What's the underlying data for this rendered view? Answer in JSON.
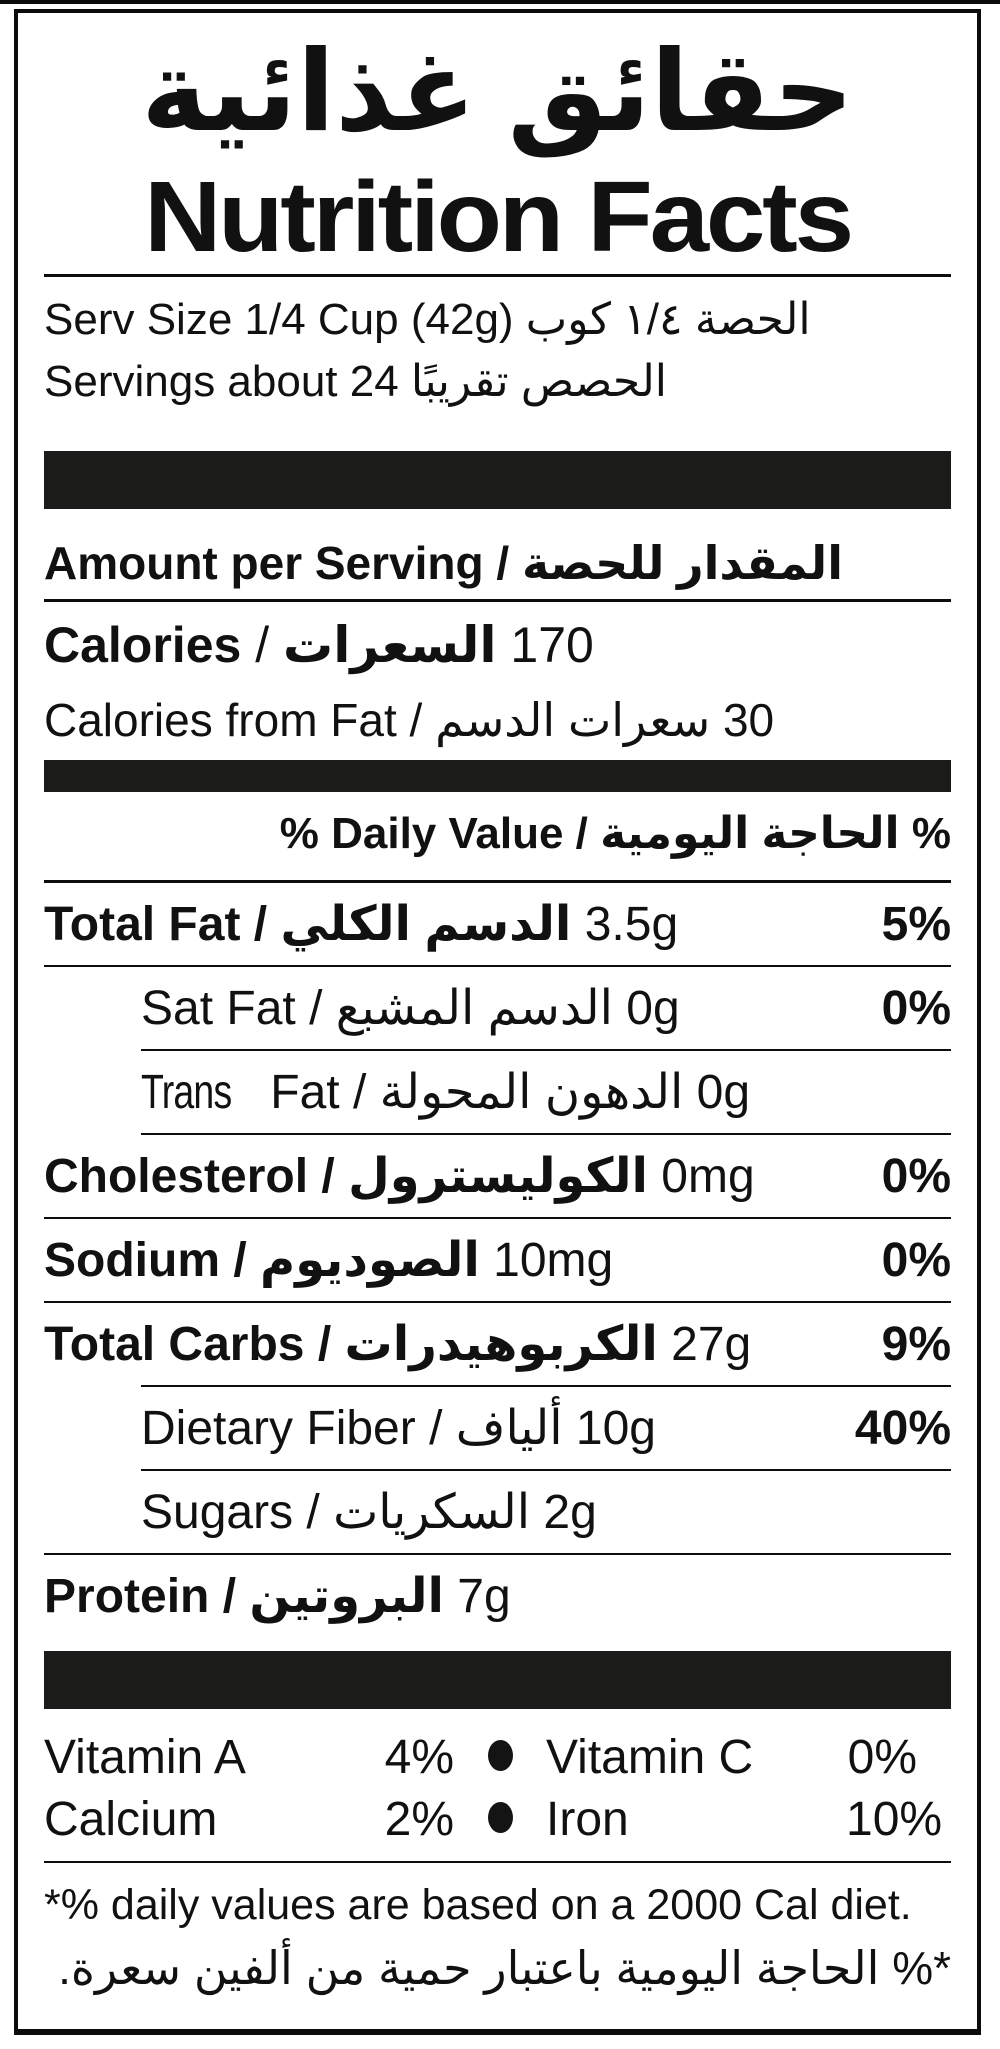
{
  "colors": {
    "bar": "#1b1b19",
    "text": "#111111",
    "border": "#0c0c0c",
    "background": "#ffffff"
  },
  "title": {
    "ar": "حقائق غذائية",
    "en": "Nutrition Facts"
  },
  "row_sep": " / ",
  "serving": {
    "size_en": "Serv Size 1/4 Cup (42g)",
    "size_ar": "الحصة ١/٤ كوب",
    "count_en": "Servings about 24",
    "count_ar": "الحصص تقريبًا"
  },
  "amount": {
    "en": "Amount per Serving",
    "ar": "المقدار للحصة"
  },
  "calories": {
    "en": "Calories",
    "ar": "السعرات",
    "value": " 170"
  },
  "calories_from_fat": {
    "en": "Calories from Fat",
    "ar": "سعرات الدسم",
    "value": " 30"
  },
  "dv_header": {
    "en": "% Daily Value",
    "ar": "الحاجة اليومية",
    "suffix": " %"
  },
  "nutrients": [
    {
      "slug": "total-fat",
      "bold": true,
      "indent": false,
      "en": "Total Fat",
      "ar": "الدسم الكلي",
      "value": " 3.5g",
      "dv": "5%",
      "hr": "full"
    },
    {
      "slug": "sat-fat",
      "bold": false,
      "indent": true,
      "en": "Sat Fat",
      "ar": "الدسم المشبع",
      "value": " 0g",
      "dv": "0%",
      "hr": "indent"
    },
    {
      "slug": "trans-fat",
      "bold": false,
      "indent": true,
      "prefix": "Trans",
      "en": " Fat",
      "ar": "الدهون المحولة",
      "value": " 0g",
      "dv": "",
      "hr": "indent"
    },
    {
      "slug": "cholesterol",
      "bold": true,
      "indent": false,
      "en": "Cholesterol",
      "ar": "الكوليسترول",
      "value": " 0mg",
      "dv": "0%",
      "hr": "full"
    },
    {
      "slug": "sodium",
      "bold": true,
      "indent": false,
      "en": "Sodium",
      "ar": "الصوديوم",
      "value": " 10mg",
      "dv": "0%",
      "hr": "full"
    },
    {
      "slug": "total-carbs",
      "bold": true,
      "indent": false,
      "en": "Total Carbs",
      "ar": "الكربوهيدرات",
      "value": " 27g",
      "dv": "9%",
      "hr": "indent"
    },
    {
      "slug": "dietary-fiber",
      "bold": false,
      "indent": true,
      "en": "Dietary Fiber",
      "ar": "ألياف",
      "value": " 10g",
      "dv": "40%",
      "hr": "indent"
    },
    {
      "slug": "sugars",
      "bold": false,
      "indent": true,
      "en": "Sugars",
      "ar": "السكريات",
      "value": " 2g",
      "dv": "",
      "hr": "full"
    },
    {
      "slug": "protein",
      "bold": true,
      "indent": false,
      "en": "Protein",
      "ar": "البروتين",
      "value": " 7g",
      "dv": "",
      "hr": "none"
    }
  ],
  "vitamins": [
    {
      "l1": "Vitamin A",
      "v1": "4%",
      "l2": "Vitamin C",
      "v2": "0%"
    },
    {
      "l1": "Calcium",
      "v1": "2%",
      "l2": "Iron",
      "v2": "10%"
    }
  ],
  "footnotes": {
    "en": "*% daily values are based on a 2000 Cal diet.",
    "ar": "*% الحاجة اليومية باعتبار حمية من ألفين سعرة."
  }
}
